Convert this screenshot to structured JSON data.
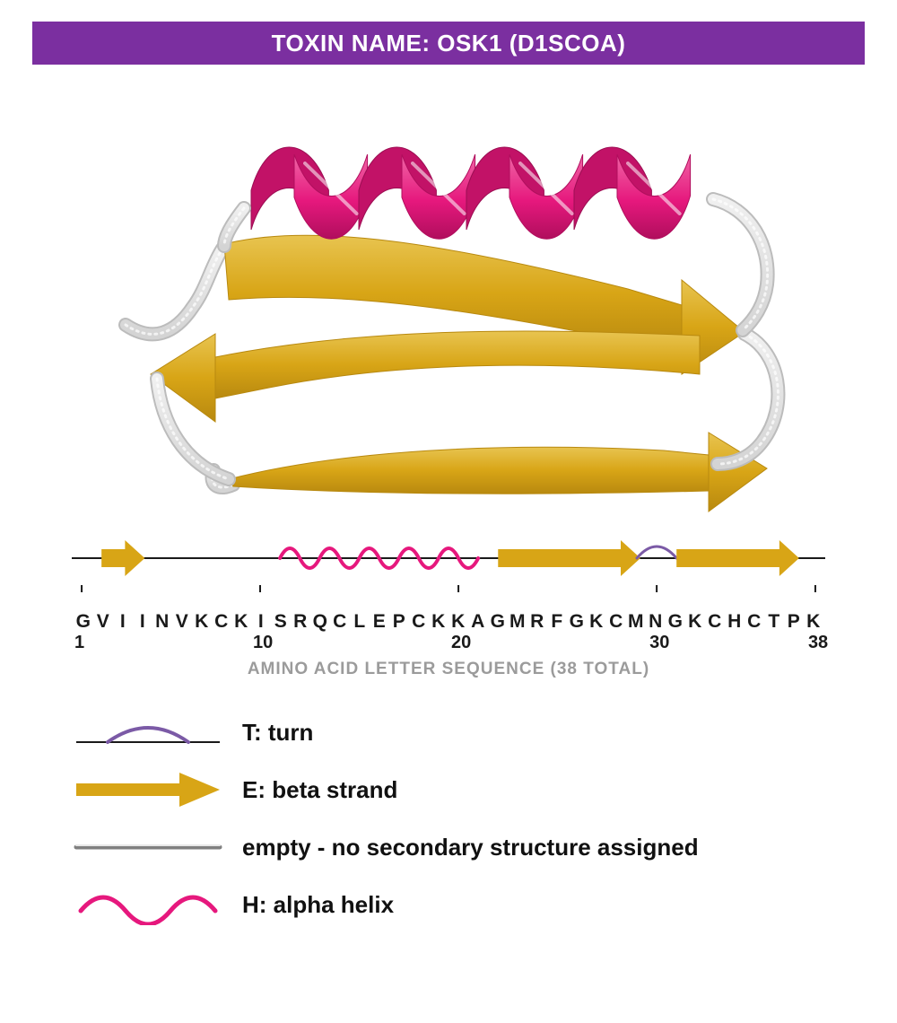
{
  "header": {
    "title": "TOXIN NAME: OSK1 (D1SCOA)",
    "bg_color": "#7b2fa0",
    "text_color": "#ffffff",
    "fontsize": 26
  },
  "colors": {
    "helix": "#e6187d",
    "helix_light": "#f065a6",
    "strand": "#d8a516",
    "strand_dark": "#b8890f",
    "strand_light": "#e8c450",
    "coil": "#d4d4d4",
    "coil_light": "#f0f0f0",
    "turn": "#7b5aa6",
    "axis": "#1a1a1a",
    "caption": "#9b9b9b",
    "background": "#ffffff"
  },
  "sequence_track": {
    "sequence": [
      "G",
      "V",
      "I",
      "I",
      "N",
      "V",
      "K",
      "C",
      "K",
      "I",
      "S",
      "R",
      "Q",
      "C",
      "L",
      "E",
      "P",
      "C",
      "K",
      "K",
      "A",
      "G",
      "M",
      "R",
      "F",
      "G",
      "K",
      "C",
      "M",
      "N",
      "G",
      "K",
      "C",
      "H",
      "C",
      "T",
      "P",
      "K"
    ],
    "total": 38,
    "ticks": [
      {
        "pos": 1,
        "label": "1"
      },
      {
        "pos": 10,
        "label": "10"
      },
      {
        "pos": 20,
        "label": "20"
      },
      {
        "pos": 30,
        "label": "30"
      },
      {
        "pos": 38,
        "label": "38"
      }
    ],
    "caption": "AMINO ACID LETTER SEQUENCE (38 TOTAL)",
    "segments": [
      {
        "type": "strand",
        "start": 2,
        "end": 4
      },
      {
        "type": "empty",
        "start": 4,
        "end": 11
      },
      {
        "type": "helix",
        "start": 11,
        "end": 21,
        "loops": 5
      },
      {
        "type": "empty",
        "start": 21,
        "end": 22
      },
      {
        "type": "strand",
        "start": 22,
        "end": 29
      },
      {
        "type": "turn",
        "start": 29,
        "end": 31
      },
      {
        "type": "strand",
        "start": 31,
        "end": 37
      },
      {
        "type": "empty",
        "start": 37,
        "end": 38
      }
    ],
    "track_height": 56,
    "arrow_body_h": 20,
    "arrow_head_h": 40,
    "helix_amp": 22,
    "line_w": 3
  },
  "legend": {
    "items": [
      {
        "key": "T",
        "label": "T:  turn",
        "icon": "turn"
      },
      {
        "key": "E",
        "label": "E:  beta strand",
        "icon": "strand"
      },
      {
        "key": "empty",
        "label": "empty - no secondary structure assigned",
        "icon": "empty"
      },
      {
        "key": "H",
        "label": "H:  alpha helix",
        "icon": "helix"
      }
    ],
    "label_fontsize": 26
  },
  "ribbon3d": {
    "note": "Schematic approximation of 3D cartoon — one alpha helix (pink) on top, three beta strands (gold) below, joined by white coils.",
    "helix_color": "#e6187d",
    "strand_color": "#d8a516",
    "coil_color": "#e0e0e0"
  }
}
